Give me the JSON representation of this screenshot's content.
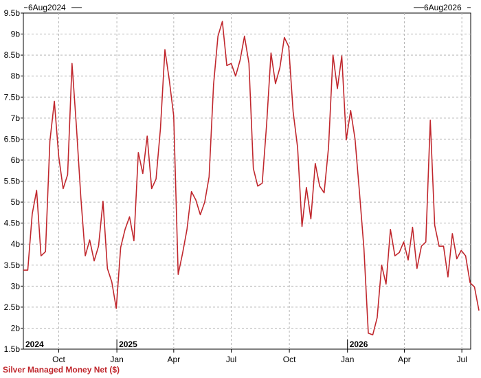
{
  "chart_data": {
    "type": "line",
    "title": "Silver Managed Money Net ($)",
    "date_range": {
      "start": "6Aug2024",
      "end": "6Aug2026"
    },
    "ylim": [
      1.5,
      9.5
    ],
    "y_ticks": [
      {
        "v": 9.5,
        "label": "9.5b"
      },
      {
        "v": 9,
        "label": "9b"
      },
      {
        "v": 8.5,
        "label": "8.5b"
      },
      {
        "v": 8,
        "label": "8b"
      },
      {
        "v": 7.5,
        "label": "7.5b"
      },
      {
        "v": 7,
        "label": "7b"
      },
      {
        "v": 6.5,
        "label": "6.5b"
      },
      {
        "v": 6,
        "label": "6b"
      },
      {
        "v": 5.5,
        "label": "5.5b"
      },
      {
        "v": 5,
        "label": "5b"
      },
      {
        "v": 4.5,
        "label": "4.5b"
      },
      {
        "v": 4,
        "label": "4b"
      },
      {
        "v": 3.5,
        "label": "3.5b"
      },
      {
        "v": 3,
        "label": "3b"
      },
      {
        "v": 2.5,
        "label": "2.5b"
      },
      {
        "v": 2,
        "label": "2b"
      },
      {
        "v": 1.5,
        "label": "1.5b"
      }
    ],
    "x_ticks": [
      {
        "date": "2024-10-01",
        "label": "Oct"
      },
      {
        "date": "2025-01-01",
        "label": "Jan"
      },
      {
        "date": "2025-04-01",
        "label": "Apr"
      },
      {
        "date": "2025-07-01",
        "label": "Jul"
      },
      {
        "date": "2025-10-01",
        "label": "Oct"
      },
      {
        "date": "2026-01-01",
        "label": "Jan"
      },
      {
        "date": "2026-04-01",
        "label": "Apr"
      },
      {
        "date": "2026-07-01",
        "label": "Jul"
      }
    ],
    "year_labels": [
      {
        "date": "2024-08-06",
        "label": "2024"
      },
      {
        "date": "2025-01-01",
        "label": "2025"
      },
      {
        "date": "2026-01-01",
        "label": "2026"
      }
    ],
    "grid": true,
    "line_color": "#c0272d",
    "series": [
      {
        "x": [
          "2024-08-06",
          "2024-08-13",
          "2024-08-20",
          "2024-08-27",
          "2024-09-03",
          "2024-09-10",
          "2024-09-17",
          "2024-09-24",
          "2024-10-01",
          "2024-10-08",
          "2024-10-15",
          "2024-10-22",
          "2024-10-29",
          "2024-11-05",
          "2024-11-12",
          "2024-11-19",
          "2024-11-26",
          "2024-12-03",
          "2024-12-10",
          "2024-12-17",
          "2024-12-24",
          "2024-12-31",
          "2025-01-07",
          "2025-01-14",
          "2025-01-21",
          "2025-01-28",
          "2025-02-04",
          "2025-02-11",
          "2025-02-18",
          "2025-02-25",
          "2025-03-04",
          "2025-03-11",
          "2025-03-18",
          "2025-03-25",
          "2025-04-01",
          "2025-04-08",
          "2025-04-15",
          "2025-04-22",
          "2025-04-29",
          "2025-05-06",
          "2025-05-13",
          "2025-05-20",
          "2025-05-27",
          "2025-06-03",
          "2025-06-10",
          "2025-06-17",
          "2025-06-24",
          "2025-07-01",
          "2025-07-08",
          "2025-07-15",
          "2025-07-22",
          "2025-07-29",
          "2025-08-05",
          "2025-08-12",
          "2025-08-19",
          "2025-08-26",
          "2025-09-02",
          "2025-09-09",
          "2025-09-16",
          "2025-09-23",
          "2025-09-30",
          "2025-10-07",
          "2025-10-14",
          "2025-10-21",
          "2025-10-28",
          "2025-11-04",
          "2025-11-11",
          "2025-11-18",
          "2025-11-25",
          "2025-12-02",
          "2025-12-09",
          "2025-12-16",
          "2025-12-23",
          "2025-12-30",
          "2026-01-06",
          "2026-01-13",
          "2026-01-20",
          "2026-01-27",
          "2026-02-03",
          "2026-02-10",
          "2026-02-17",
          "2026-02-24",
          "2026-03-03",
          "2026-03-10",
          "2026-03-17",
          "2026-03-24",
          "2026-03-31",
          "2026-04-07",
          "2026-04-14",
          "2026-04-21",
          "2026-04-28",
          "2026-05-05",
          "2026-05-12",
          "2026-05-19",
          "2026-05-26",
          "2026-06-02",
          "2026-06-09",
          "2026-06-16",
          "2026-06-23",
          "2026-06-30",
          "2026-07-07",
          "2026-07-14",
          "2026-07-21",
          "2026-07-28"
        ],
        "values": [
          3.38,
          3.38,
          4.72,
          5.28,
          3.72,
          3.82,
          6.45,
          7.4,
          6.08,
          5.32,
          5.65,
          8.3,
          6.8,
          5.1,
          3.72,
          4.1,
          3.6,
          3.95,
          5.02,
          3.42,
          3.1,
          2.47,
          3.92,
          4.35,
          4.65,
          4.08,
          6.18,
          5.68,
          6.57,
          5.32,
          5.55,
          6.75,
          8.63,
          7.9,
          7.05,
          3.28,
          3.78,
          4.35,
          5.25,
          5.05,
          4.7,
          5.0,
          5.6,
          7.8,
          8.95,
          9.3,
          8.25,
          8.3,
          8.0,
          8.38,
          8.95,
          8.3,
          5.8,
          5.38,
          5.45,
          6.85,
          8.55,
          7.82,
          8.2,
          8.92,
          8.7,
          7.15,
          6.3,
          4.42,
          5.35,
          4.6,
          5.92,
          5.38,
          5.22,
          6.3,
          8.5,
          7.7,
          8.48,
          6.48,
          7.18,
          6.5,
          5.22,
          3.9,
          1.88,
          1.84,
          2.25,
          3.5,
          3.05,
          4.35,
          3.72,
          3.8,
          4.05,
          3.62,
          4.4,
          3.42,
          3.95,
          4.05,
          6.95,
          4.45,
          3.95,
          3.95,
          3.22,
          4.25,
          3.65,
          3.85,
          3.72,
          3.08,
          2.98,
          2.42
        ]
      }
    ]
  },
  "caption": "Silver Managed Money Net ($)"
}
